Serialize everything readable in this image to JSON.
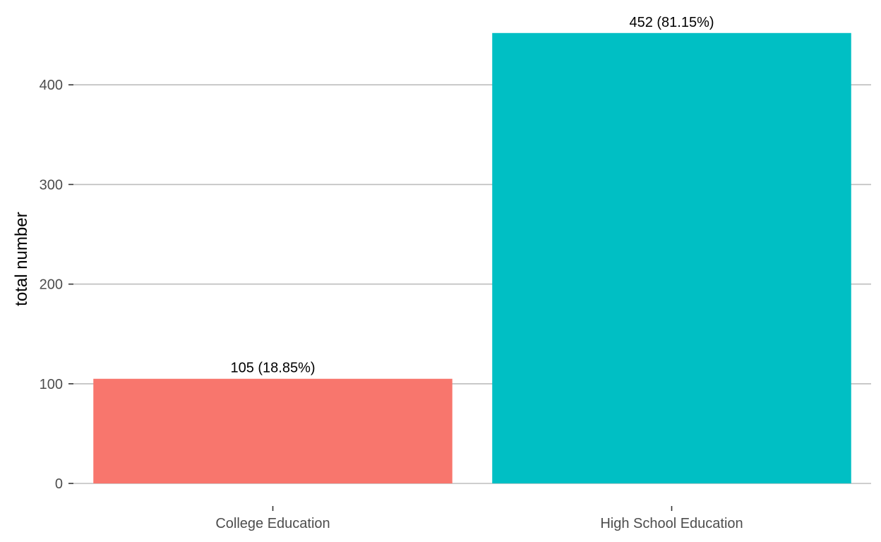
{
  "chart_data": {
    "type": "bar",
    "categories": [
      "College Education",
      "High School Education"
    ],
    "values": [
      105,
      452
    ],
    "data_labels": [
      "105 (18.85%)",
      "452 (81.15%)"
    ],
    "colors": [
      "#F8766D",
      "#00BFC4"
    ],
    "ylabel": "total number",
    "yticks": [
      0,
      100,
      200,
      300,
      400
    ],
    "ylim": [
      0,
      475
    ],
    "grid": true,
    "legend": "none"
  }
}
